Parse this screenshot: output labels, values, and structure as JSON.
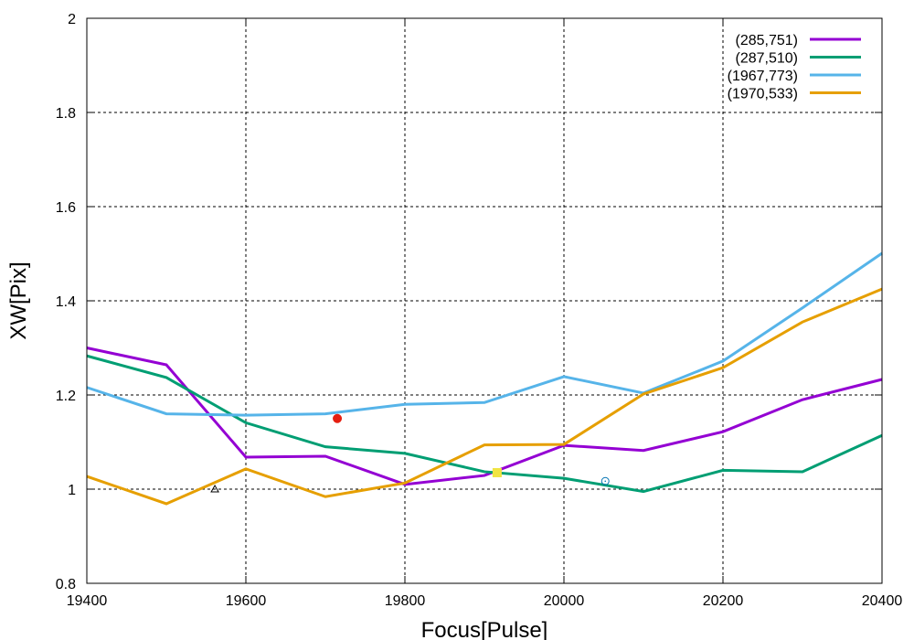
{
  "chart_data": {
    "type": "line",
    "title": "",
    "xlabel": "Focus[Pulse]",
    "ylabel": "XW[Pix]",
    "xlim": [
      19400,
      20400
    ],
    "ylim": [
      0.8,
      2.0
    ],
    "grid": true,
    "legend_position": "top-right",
    "xticks": [
      "19400",
      "19600",
      "19800",
      "20000",
      "20200",
      "20400"
    ],
    "xtick_values": [
      19400,
      19600,
      19800,
      20000,
      20200,
      20400
    ],
    "yticks": [
      "0.8",
      "1",
      "1.2",
      "1.4",
      "1.6",
      "1.8",
      "2"
    ],
    "ytick_values": [
      0.8,
      1.0,
      1.2,
      1.4,
      1.6,
      1.8,
      2.0
    ],
    "x": [
      19400,
      19500,
      19600,
      19700,
      19800,
      19900,
      20000,
      20100,
      20200,
      20300,
      20400
    ],
    "series": [
      {
        "name": "(285,751)",
        "color": "#9400d3",
        "values": [
          1.3,
          1.264,
          1.068,
          1.07,
          1.01,
          1.029,
          1.093,
          1.082,
          1.122,
          1.19,
          1.233
        ]
      },
      {
        "name": "(287,510)",
        "color": "#009e73",
        "values": [
          1.283,
          1.237,
          1.141,
          1.09,
          1.076,
          1.037,
          1.023,
          0.995,
          1.04,
          1.037,
          1.114
        ]
      },
      {
        "name": "(1967,773)",
        "color": "#56b4e9",
        "values": [
          1.216,
          1.16,
          1.157,
          1.16,
          1.18,
          1.184,
          1.239,
          1.204,
          1.272,
          1.385,
          1.501
        ]
      },
      {
        "name": "(1970,533)",
        "color": "#e69f00",
        "values": [
          1.027,
          0.969,
          1.043,
          0.984,
          1.013,
          1.094,
          1.095,
          1.202,
          1.258,
          1.355,
          1.425
        ]
      }
    ],
    "points": [
      {
        "name": "triangle-marker",
        "shape": "triangle",
        "color": "#000000",
        "x": 19561,
        "y": 1.0
      },
      {
        "name": "red-dot-marker",
        "shape": "filled-circle",
        "color": "#e51e10",
        "x": 19715,
        "y": 1.15
      },
      {
        "name": "yellow-square-marker",
        "shape": "filled-square",
        "color": "#f0e442",
        "x": 19916,
        "y": 1.035
      },
      {
        "name": "blue-circle-marker",
        "shape": "open-circle",
        "color": "#0072b2",
        "x": 20052,
        "y": 1.017
      }
    ]
  }
}
